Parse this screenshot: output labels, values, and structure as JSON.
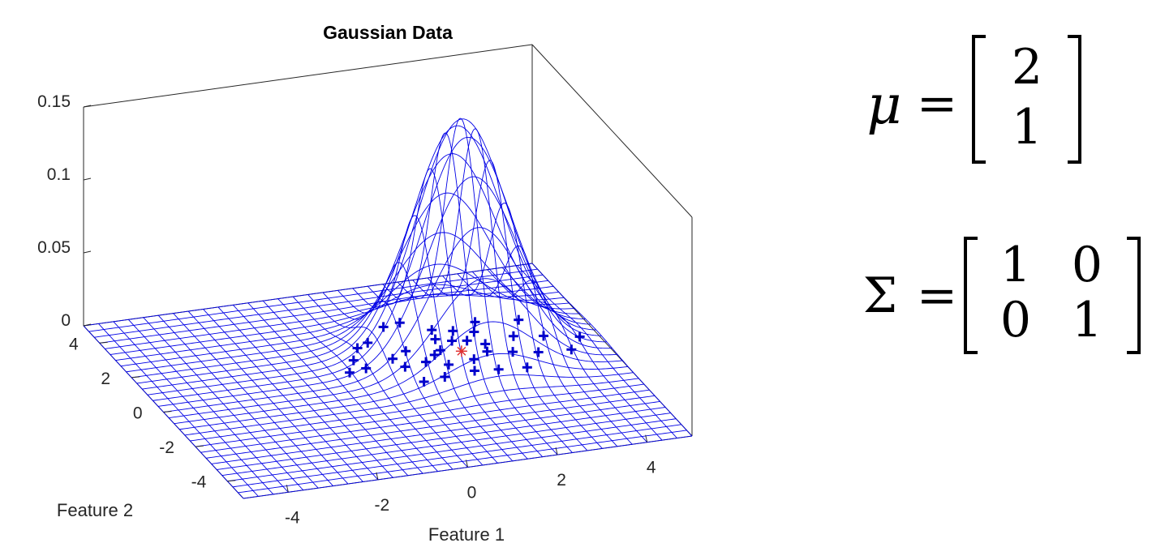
{
  "chart_data": {
    "type": "surface",
    "title": "Gaussian Data",
    "xlabel": "Feature 1",
    "ylabel": "Feature 2",
    "zlabel": "",
    "x_ticks": [
      "-4",
      "-2",
      "0",
      "2",
      "4"
    ],
    "y_ticks": [
      "-4",
      "-2",
      "0",
      "2",
      "4"
    ],
    "z_ticks": [
      "0",
      "0.05",
      "0.1",
      "0.15"
    ],
    "xlim": [
      -5,
      5
    ],
    "ylim": [
      -5,
      5
    ],
    "zlim": [
      0,
      0.15
    ],
    "surface": {
      "function": "bivariate normal pdf",
      "mean": [
        2,
        1
      ],
      "covariance": [
        [
          1,
          0
        ],
        [
          0,
          1
        ]
      ],
      "peak_z": 0.159,
      "grid_range": [
        -5,
        5
      ],
      "grid_lines": 31,
      "mesh_color": "#0000e6"
    },
    "samples": {
      "marker": "+",
      "color": "#0000cc",
      "points": [
        [
          0.9,
          2.8
        ],
        [
          1.3,
          2.9
        ],
        [
          3.7,
          2.2
        ],
        [
          4.6,
          0.9
        ],
        [
          0.0,
          1.9
        ],
        [
          0.3,
          2.1
        ],
        [
          1.8,
          2.3
        ],
        [
          2.2,
          2.1
        ],
        [
          2.6,
          1.9
        ],
        [
          -0.3,
          1.3
        ],
        [
          0.5,
          1.1
        ],
        [
          0.9,
          1.4
        ],
        [
          1.4,
          1.0
        ],
        [
          1.7,
          1.8
        ],
        [
          2.0,
          1.6
        ],
        [
          2.3,
          1.5
        ],
        [
          2.6,
          1.2
        ],
        [
          3.3,
          1.4
        ],
        [
          3.9,
          1.2
        ],
        [
          -0.6,
          0.7
        ],
        [
          -0.2,
          0.8
        ],
        [
          0.6,
          0.6
        ],
        [
          1.1,
          0.7
        ],
        [
          1.5,
          0.4
        ],
        [
          2.1,
          0.5
        ],
        [
          2.5,
          0.8
        ],
        [
          3.0,
          0.6
        ],
        [
          3.5,
          0.4
        ],
        [
          4.2,
          0.3
        ],
        [
          0.7,
          -0.3
        ],
        [
          1.2,
          -0.2
        ],
        [
          1.9,
          -0.1
        ],
        [
          2.4,
          -0.2
        ],
        [
          3.0,
          -0.3
        ],
        [
          1.6,
          1.2
        ],
        [
          2.8,
          2.4
        ]
      ]
    },
    "mean_marker": {
      "x": 2,
      "y": 1,
      "marker": "*",
      "color": "#e03030"
    }
  },
  "equations": {
    "mu_symbol": "μ",
    "sigma_symbol": "Σ",
    "equals": "=",
    "mu_values": [
      "2",
      "1"
    ],
    "sigma_values": [
      [
        "1",
        "0"
      ],
      [
        "0",
        "1"
      ]
    ]
  }
}
